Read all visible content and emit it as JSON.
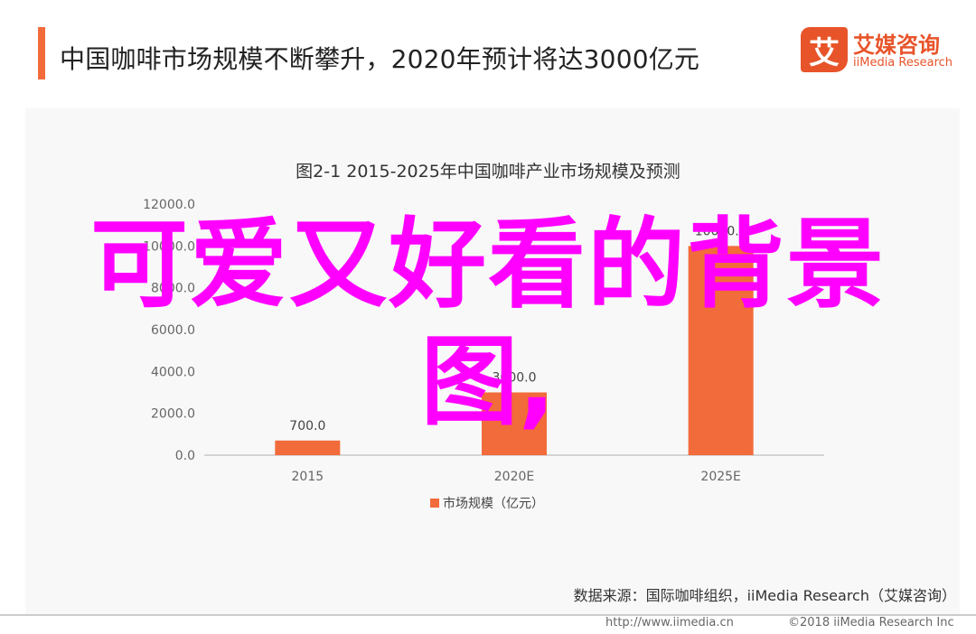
{
  "header": {
    "title": "中国咖啡市场规模不断攀升，2020年预计将达3000亿元"
  },
  "logo": {
    "mark": "艾",
    "name_cn": "艾媒咨询",
    "name_en": "iiMedia Research"
  },
  "overlay": {
    "line1": "可爱又好看的背景",
    "line2": "图,"
  },
  "source_note": "数据来源：国际咖啡组织，iiMedia Research（艾媒咨询）",
  "footer": {
    "url": "http://www.iimedia.cn",
    "copyright": "©2018  iiMedia Research  Inc"
  },
  "colors": {
    "accent": "#f26b3a",
    "bar": "#f26b3a",
    "overlay": "#ff00ff"
  },
  "chart_data": {
    "type": "bar",
    "title": "图2-1 2015-2025年中国咖啡产业市场规模及预测",
    "categories": [
      "2015",
      "2020E",
      "2025E"
    ],
    "series": [
      {
        "name": "市场规模（亿元）",
        "values": [
          700.0,
          3000.0,
          10000.0
        ]
      }
    ],
    "value_labels": [
      "700.0",
      "3000.0",
      "10000.0"
    ],
    "y_ticks": [
      "0.0",
      "2000.0",
      "4000.0",
      "6000.0",
      "8000.0",
      "10000.0",
      "12000.0"
    ],
    "ylim": [
      0,
      12000
    ],
    "legend_position": "bottom-center",
    "grid": false
  }
}
